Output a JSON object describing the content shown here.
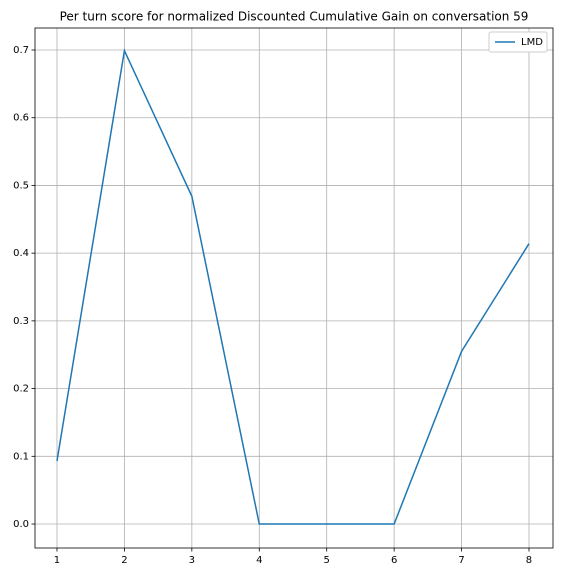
{
  "chart_data": {
    "type": "line",
    "title": "Per turn score for normalized Discounted Cumulative Gain on conversation 59",
    "x": [
      1,
      2,
      3,
      4,
      5,
      6,
      7,
      8
    ],
    "series": [
      {
        "name": "LMD",
        "color": "#1f77b4",
        "values": [
          0.093,
          0.699,
          0.484,
          0.0,
          0.0,
          0.0,
          0.255,
          0.414
        ]
      }
    ],
    "xlim": [
      0.674,
      8.356
    ],
    "xticks": [
      1,
      2,
      3,
      4,
      5,
      6,
      7,
      8
    ],
    "ylim": [
      -0.0354,
      0.7325
    ],
    "yticks": [
      {
        "value": 0,
        "label": "0.0"
      },
      0.1,
      0.2,
      0.3,
      0.4,
      0.5,
      0.6,
      0.7
    ],
    "grid": true,
    "legend": "upper right"
  }
}
